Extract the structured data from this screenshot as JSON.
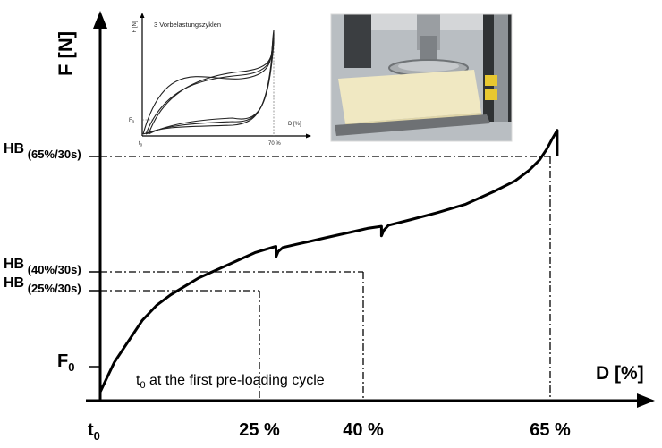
{
  "chart_data": {
    "type": "line",
    "xlabel": "D [%]",
    "ylabel": "F [N]",
    "x_ticks": [
      "t",
      "25 %",
      "40 %",
      "65 %"
    ],
    "x_tick_values": [
      0,
      25,
      40,
      65
    ],
    "x_tick_sub": "0",
    "y_ticks": [
      {
        "main": "F",
        "sub": "0",
        "value": 0
      },
      {
        "main": "HB",
        "sub": "(25%/30s)",
        "value": 0.53
      },
      {
        "main": "HB",
        "sub": "(40%/30s)",
        "value": 0.62
      },
      {
        "main": "HB",
        "sub": "(65%/30s)",
        "value": 1.0
      }
    ],
    "annotation": {
      "pre": "t",
      "sub": "0",
      "post": " at the first pre-loading cycle"
    },
    "series": [
      {
        "x": [
          0,
          2,
          4,
          6,
          8,
          10,
          12,
          14,
          16,
          18,
          20,
          22,
          24,
          25,
          25,
          25.3,
          26,
          28,
          30,
          32,
          34,
          36,
          38,
          40,
          40,
          40.3,
          41,
          44,
          48,
          52,
          56,
          59,
          61,
          62.5,
          63.5,
          64.3,
          65,
          65
        ],
        "y": [
          -0.12,
          0.02,
          0.12,
          0.22,
          0.29,
          0.34,
          0.38,
          0.42,
          0.45,
          0.48,
          0.51,
          0.54,
          0.56,
          0.57,
          0.52,
          0.545,
          0.565,
          0.58,
          0.595,
          0.61,
          0.625,
          0.64,
          0.655,
          0.665,
          0.62,
          0.645,
          0.67,
          0.695,
          0.73,
          0.77,
          0.83,
          0.88,
          0.93,
          0.98,
          1.03,
          1.08,
          1.12,
          1.0
        ]
      }
    ],
    "inset_chart": {
      "type": "line",
      "title": "3 Vorbelastungszyklen",
      "ylabel": "F [N]",
      "xlabel": "D [%]",
      "y_tick": {
        "main": "F",
        "sub": "0"
      },
      "x_ticks": [
        {
          "main": "t",
          "sub": "0"
        },
        {
          "main": "70 %",
          "sub": ""
        }
      ],
      "cycles": 3,
      "max_deformation": 70
    },
    "photo": {
      "description_icon": "foam-compression-test-machine-photo"
    }
  }
}
